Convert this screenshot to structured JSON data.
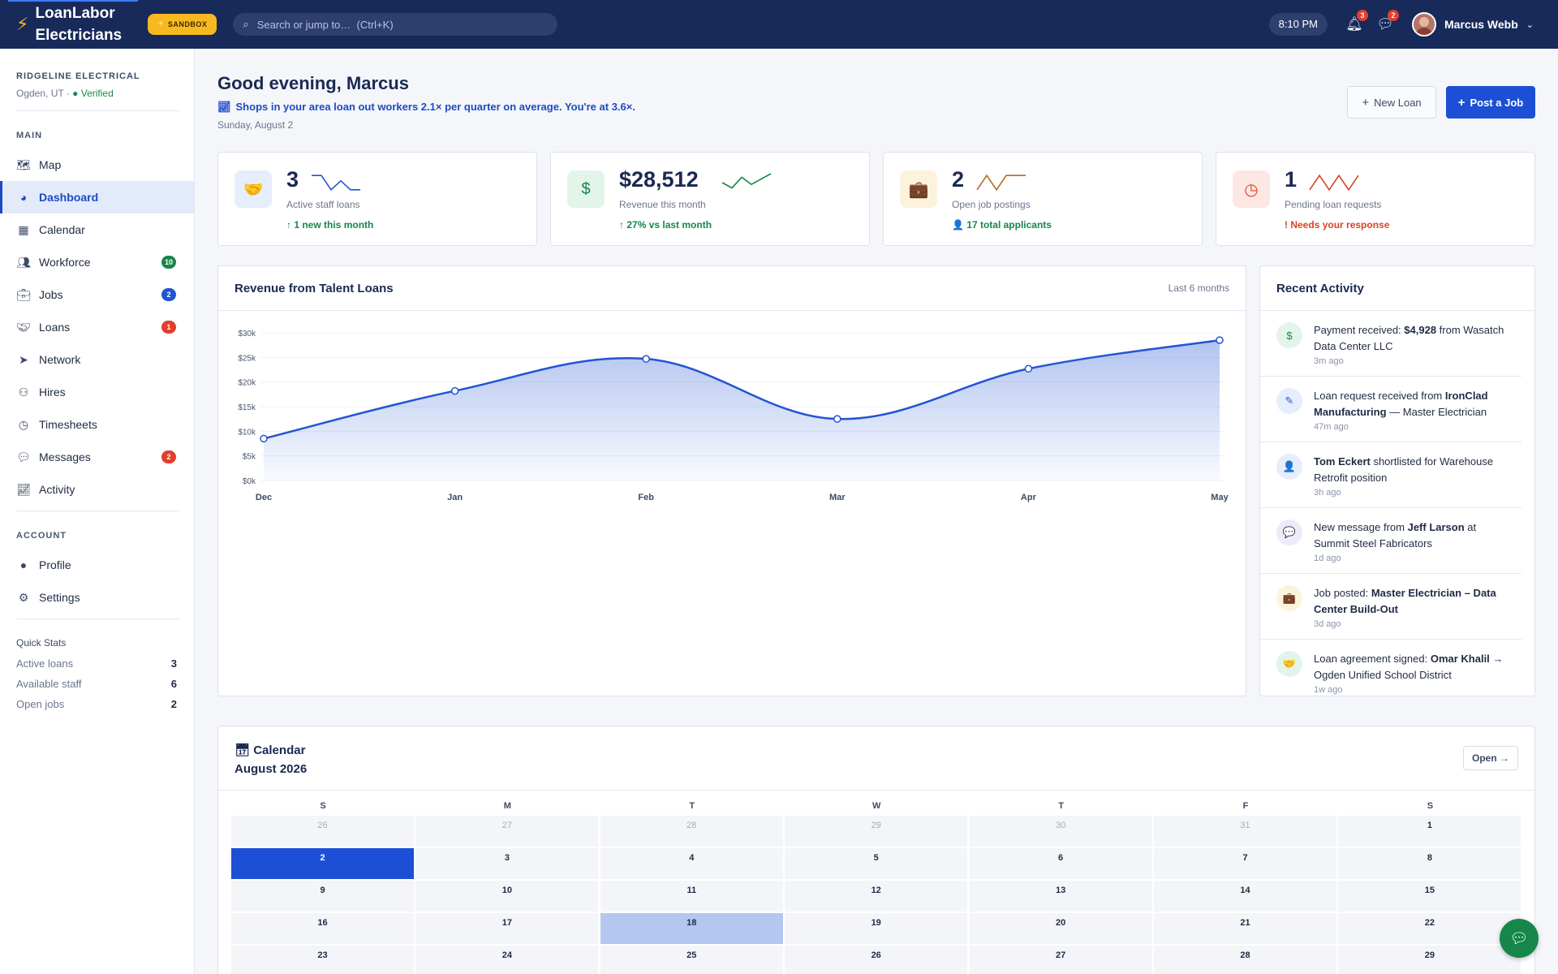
{
  "app": {
    "brand_line1": "LoanLabor",
    "brand_line2": "Electricians",
    "sandbox": "SANDBOX",
    "search_placeholder": "Search or jump to…  (Ctrl+K)",
    "time": "8:10 PM",
    "notifications_count": "3",
    "messages_count": "2",
    "user_name": "Marcus Webb"
  },
  "org": {
    "name": "RIDGELINE ELECTRICAL",
    "location": "Ogden, UT · ",
    "verified": "● Verified"
  },
  "sidebar": {
    "main_label": "MAIN",
    "main_items": [
      {
        "label": "Map",
        "icon": "map-icon",
        "badge": ""
      },
      {
        "label": "Dashboard",
        "icon": "dashboard-icon",
        "badge": "",
        "active": true
      },
      {
        "label": "Calendar",
        "icon": "calendar-icon",
        "badge": ""
      },
      {
        "label": "Workforce",
        "icon": "users-icon",
        "badge": "10"
      },
      {
        "label": "Jobs",
        "icon": "briefcase-icon",
        "badge": "2"
      },
      {
        "label": "Loans",
        "icon": "handshake-icon",
        "badge": "1"
      },
      {
        "label": "Network",
        "icon": "network-icon",
        "badge": ""
      },
      {
        "label": "Hires",
        "icon": "hires-icon",
        "badge": ""
      },
      {
        "label": "Timesheets",
        "icon": "clock-icon",
        "badge": ""
      },
      {
        "label": "Messages",
        "icon": "chat-icon",
        "badge": "2"
      },
      {
        "label": "Activity",
        "icon": "chart-line-icon",
        "badge": ""
      }
    ],
    "account_label": "ACCOUNT",
    "account_items": [
      {
        "label": "Profile",
        "icon": "user-circle-icon"
      },
      {
        "label": "Settings",
        "icon": "gear-icon"
      }
    ],
    "quick_stats_title": "Quick Stats",
    "quick_stats": [
      {
        "label": "Active loans",
        "value": "3"
      },
      {
        "label": "Available staff",
        "value": "6"
      },
      {
        "label": "Open jobs",
        "value": "2"
      }
    ]
  },
  "header": {
    "greeting": "Good evening, Marcus",
    "insight": "Shops in your area loan out workers 2.1× per quarter on average. You're at 3.6×.",
    "date": "Sunday, August 2",
    "new_loan": "New Loan",
    "post_job": "Post a Job"
  },
  "kpis": [
    {
      "value": "3",
      "label": "Active staff loans",
      "sub": "1 new this month",
      "sub_icon": "↑",
      "color": "#2255d4",
      "bg": "#e6edfb",
      "icon": "handshake-icon",
      "glyph": "🤝",
      "sub_color": "#17864b",
      "spark": [
        0.1,
        0.1,
        0.9,
        0.4,
        0.9,
        0.9
      ]
    },
    {
      "value": "$28,512",
      "label": "Revenue this month",
      "sub": "27% vs last month",
      "sub_icon": "↑",
      "color": "#17864b",
      "bg": "#e3f5ea",
      "icon": "dollar-icon",
      "glyph": "$",
      "sub_color": "#17864b",
      "spark": [
        0.5,
        0.8,
        0.2,
        0.6,
        0.3,
        0.0
      ]
    },
    {
      "value": "2",
      "label": "Open job postings",
      "sub": "17 total applicants",
      "sub_icon": "👤",
      "color": "#b56a1e",
      "bg": "#fdf3dd",
      "icon": "briefcase-icon",
      "glyph": "💼",
      "sub_color": "#17864b",
      "spark": [
        0.9,
        0.1,
        0.9,
        0.1,
        0.1,
        0.1
      ]
    },
    {
      "value": "1",
      "label": "Pending loan requests",
      "sub": "Needs your response",
      "sub_icon": "!",
      "color": "#d94325",
      "bg": "#fde7e3",
      "icon": "clock-icon",
      "glyph": "◷",
      "sub_color": "#d94325",
      "spark": [
        0.9,
        0.1,
        0.9,
        0.1,
        0.9,
        0.1
      ]
    }
  ],
  "chart_data": {
    "type": "area",
    "title": "Revenue from Talent Loans",
    "subtitle": "Last 6 months",
    "categories": [
      "Dec",
      "Jan",
      "Feb",
      "Mar",
      "Apr",
      "May"
    ],
    "values": [
      8500,
      18200,
      24700,
      12500,
      22700,
      28500
    ],
    "y_ticks": [
      "$0k",
      "$5k",
      "$10k",
      "$15k",
      "$20k",
      "$25k",
      "$30k"
    ],
    "ylim": [
      0,
      30000
    ],
    "grid": true,
    "color": "#2255d4"
  },
  "activity": {
    "title": "Recent Activity",
    "items": [
      {
        "icon": "dollar-icon",
        "glyph": "$",
        "fg": "#17864b",
        "bg": "#e3f5ea",
        "parts": [
          [
            "Payment received: ",
            false
          ],
          [
            "$4,928",
            true
          ],
          [
            " from Wasatch Data Center LLC",
            false
          ]
        ],
        "time": "3m ago"
      },
      {
        "icon": "document-icon",
        "glyph": "✎",
        "fg": "#2255d4",
        "bg": "#e6edfb",
        "parts": [
          [
            "Loan request received from ",
            false
          ],
          [
            "IronClad Manufacturing",
            true
          ],
          [
            " — Master Electrician",
            false
          ]
        ],
        "time": "47m ago"
      },
      {
        "icon": "user-check-icon",
        "glyph": "👤",
        "fg": "#2255d4",
        "bg": "#e6edfb",
        "parts": [
          [
            "Tom Eckert",
            true
          ],
          [
            " shortlisted for Warehouse Retrofit position",
            false
          ]
        ],
        "time": "3h ago"
      },
      {
        "icon": "chat-icon",
        "glyph": "💬",
        "fg": "#6a4fc4",
        "bg": "#eeeafb",
        "parts": [
          [
            "New message from ",
            false
          ],
          [
            "Jeff Larson",
            true
          ],
          [
            " at Summit Steel Fabricators",
            false
          ]
        ],
        "time": "1d ago"
      },
      {
        "icon": "briefcase-icon",
        "glyph": "💼",
        "fg": "#e08a1e",
        "bg": "#fdf3dd",
        "parts": [
          [
            "Job posted: ",
            false
          ],
          [
            "Master Electrician – Data Center Build-Out",
            true
          ]
        ],
        "time": "3d ago"
      },
      {
        "icon": "handshake-icon",
        "glyph": "🤝",
        "fg": "#17864b",
        "bg": "#e3f5ea",
        "parts": [
          [
            "Loan agreement signed: ",
            false
          ],
          [
            "Omar Khalil",
            true
          ],
          [
            " → Ogden Unified School District",
            false
          ]
        ],
        "time": "1w ago"
      }
    ]
  },
  "calendar": {
    "label": "Calendar",
    "month": "August 2026",
    "open": "Open",
    "dow": [
      "S",
      "M",
      "T",
      "W",
      "T",
      "F",
      "S"
    ],
    "weeks": [
      [
        "26",
        "27",
        "28",
        "29",
        "30",
        "31",
        "1"
      ],
      [
        "2",
        "3",
        "4",
        "5",
        "6",
        "7",
        "8"
      ],
      [
        "9",
        "10",
        "11",
        "12",
        "13",
        "14",
        "15"
      ],
      [
        "16",
        "17",
        "18",
        "19",
        "20",
        "21",
        "22"
      ],
      [
        "23",
        "24",
        "25",
        "26",
        "27",
        "28",
        "29"
      ]
    ],
    "muted_first_week_count": 6,
    "today": "2",
    "selected": "18"
  }
}
